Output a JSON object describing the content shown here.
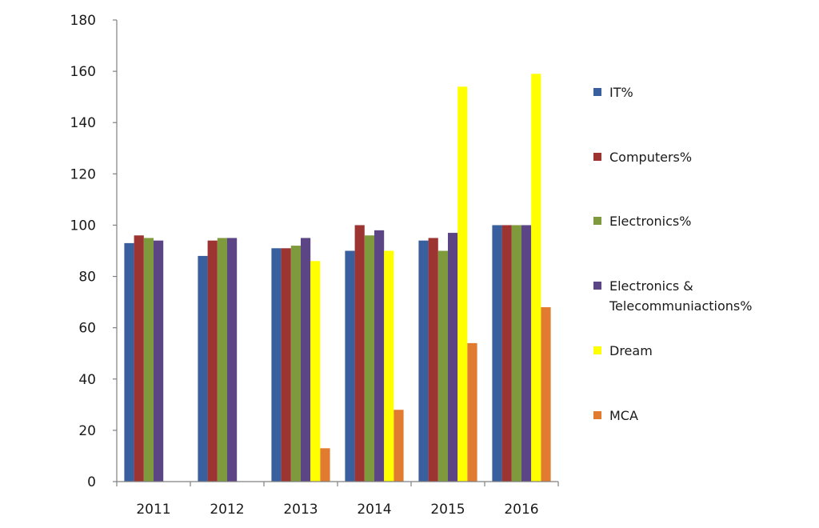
{
  "chart_data": {
    "type": "bar",
    "title": "",
    "xlabel": "",
    "ylabel": "",
    "categories": [
      "2011",
      "2012",
      "2013",
      "2014",
      "2015",
      "2016"
    ],
    "ylim": [
      0,
      180
    ],
    "yticks": [
      "0",
      "20",
      "40",
      "60",
      "80",
      "100",
      "120",
      "140",
      "160",
      "180"
    ],
    "grid": false,
    "legend_position": "right",
    "series": [
      {
        "name": "IT%",
        "color": "#3a5f9e",
        "values": [
          93,
          88,
          91,
          90,
          94,
          100
        ]
      },
      {
        "name": "Computers%",
        "color": "#9c3431",
        "values": [
          96,
          94,
          91,
          100,
          95,
          100
        ]
      },
      {
        "name": "Electronics%",
        "color": "#7e9a3c",
        "values": [
          95,
          95,
          92,
          96,
          90,
          100
        ]
      },
      {
        "name": "Electronics & Telecommuniactions%",
        "label_lines": [
          "Electronics &",
          "Telecommuniactions%"
        ],
        "color": "#5b4585",
        "values": [
          94,
          95,
          95,
          98,
          97,
          100
        ]
      },
      {
        "name": "Dream",
        "color": "#ffff00",
        "values": [
          null,
          null,
          86,
          90,
          154,
          159
        ]
      },
      {
        "name": "MCA",
        "color": "#e07b2f",
        "values": [
          null,
          null,
          13,
          28,
          54,
          68
        ]
      }
    ]
  }
}
